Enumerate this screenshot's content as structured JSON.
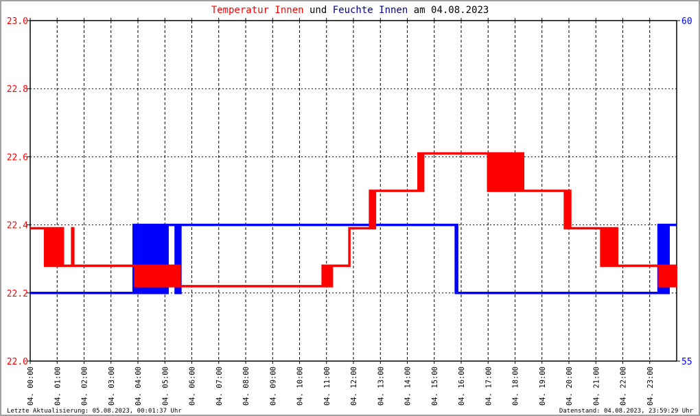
{
  "title": {
    "part1": "Temperatur Innen",
    "part2": "und",
    "part3": "Feuchte Innen",
    "part4": "am 04.08.2023"
  },
  "footer": {
    "left": "Letzte Aktualisierung: 05.08.2023, 00:01:37 Uhr",
    "right": "Datenstand: 04.08.2023, 23:59:29 Uhr"
  },
  "colors": {
    "temperature": "#ff0000",
    "humidity": "#0000ff",
    "title_humidity": "#00008b"
  },
  "chart_data": {
    "type": "line",
    "grid": true,
    "x_unit": "hour of day",
    "xlim": [
      0,
      24
    ],
    "x_tick_labels": [
      "04. 00:00",
      "04. 01:00",
      "04. 02:00",
      "04. 03:00",
      "04. 04:00",
      "04. 05:00",
      "04. 06:00",
      "04. 07:00",
      "04. 08:00",
      "04. 09:00",
      "04. 10:00",
      "04. 11:00",
      "04. 12:00",
      "04. 13:00",
      "04. 14:00",
      "04. 15:00",
      "04. 16:00",
      "04. 17:00",
      "04. 18:00",
      "04. 19:00",
      "04. 20:00",
      "04. 21:00",
      "04. 22:00",
      "04. 23:00"
    ],
    "y_left": {
      "lim": [
        22.0,
        23.0
      ],
      "ticks": [
        "22.0",
        "22.2",
        "22.4",
        "22.6",
        "22.8",
        "23.0"
      ],
      "tick_values": [
        22.0,
        22.2,
        22.4,
        22.6,
        22.8,
        23.0
      ]
    },
    "y_right": {
      "lim": [
        55,
        60
      ],
      "ticks": [
        "55",
        "60"
      ],
      "tick_values": [
        55,
        60
      ]
    },
    "series": [
      {
        "name": "Temperatur Innen",
        "axis": "left",
        "steps": [
          [
            0,
            0.55,
            22.39
          ],
          [
            0.55,
            1.25,
            22.28,
            22.39
          ],
          [
            1.25,
            1.5,
            22.28
          ],
          [
            1.5,
            1.6,
            22.28,
            22.39
          ],
          [
            1.6,
            3.9,
            22.28
          ],
          [
            3.9,
            5.55,
            22.22,
            22.28
          ],
          [
            5.55,
            10.8,
            22.22
          ],
          [
            10.8,
            11.2,
            22.22,
            22.28
          ],
          [
            11.2,
            11.85,
            22.28
          ],
          [
            11.85,
            12.6,
            22.39
          ],
          [
            12.6,
            12.8,
            22.39,
            22.5
          ],
          [
            12.8,
            14.4,
            22.5
          ],
          [
            14.4,
            14.6,
            22.5,
            22.61
          ],
          [
            14.6,
            17.0,
            22.61
          ],
          [
            17.0,
            18.3,
            22.5,
            22.61
          ],
          [
            18.3,
            19.85,
            22.5
          ],
          [
            19.85,
            20.05,
            22.39,
            22.5
          ],
          [
            20.05,
            21.2,
            22.39
          ],
          [
            21.2,
            21.8,
            22.28,
            22.39
          ],
          [
            21.8,
            23.35,
            22.28
          ],
          [
            23.35,
            24,
            22.22,
            22.28
          ]
        ]
      },
      {
        "name": "Feuchte Innen",
        "axis": "right",
        "steps": [
          [
            0,
            3.8,
            56
          ],
          [
            3.8,
            5.1,
            56,
            57
          ],
          [
            5.1,
            5.4,
            57
          ],
          [
            5.4,
            5.6,
            56,
            57
          ],
          [
            5.6,
            15.8,
            57
          ],
          [
            15.8,
            15.9,
            56,
            57
          ],
          [
            15.9,
            23.3,
            56
          ],
          [
            23.3,
            23.7,
            56,
            57
          ],
          [
            23.7,
            24,
            57
          ]
        ]
      }
    ]
  }
}
